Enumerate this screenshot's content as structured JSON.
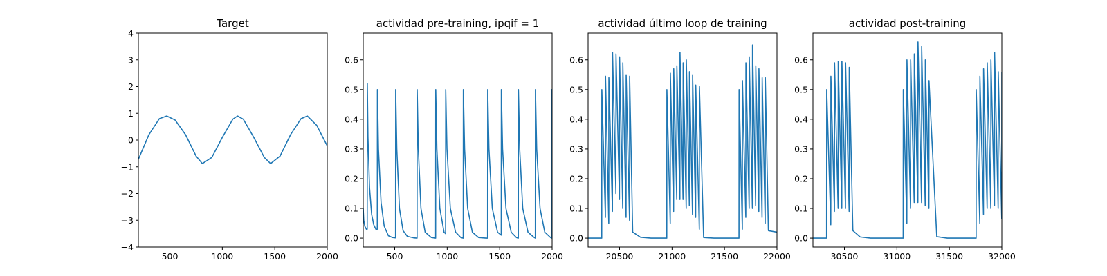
{
  "chart_data": [
    {
      "type": "line",
      "title": "Target",
      "xlabel": "",
      "ylabel": "",
      "xlim": [
        200,
        2000
      ],
      "ylim": [
        -4,
        4
      ],
      "xticks": [
        500,
        1000,
        1500,
        2000
      ],
      "yticks": [
        -4,
        -3,
        -2,
        -1,
        0,
        1,
        2,
        3,
        4
      ],
      "series": [
        {
          "color": "#1f77b4",
          "x": [
            200,
            300,
            400,
            470,
            550,
            650,
            750,
            810,
            900,
            1000,
            1100,
            1145,
            1200,
            1300,
            1400,
            1460,
            1550,
            1650,
            1750,
            1810,
            1900,
            2000
          ],
          "y": [
            -0.72,
            0.2,
            0.8,
            0.9,
            0.75,
            0.2,
            -0.6,
            -0.88,
            -0.65,
            0.1,
            0.78,
            0.9,
            0.78,
            0.1,
            -0.65,
            -0.88,
            -0.6,
            0.2,
            0.8,
            0.9,
            0.55,
            -0.22
          ]
        }
      ]
    },
    {
      "type": "line",
      "title": "actividad pre-training, ipqif = 1",
      "xlabel": "",
      "ylabel": "",
      "xlim": [
        200,
        2000
      ],
      "ylim": [
        -0.03,
        0.69
      ],
      "xticks": [
        500,
        1000,
        1500,
        2000
      ],
      "yticks": [
        0.0,
        0.1,
        0.2,
        0.3,
        0.4,
        0.5,
        0.6
      ],
      "series": [
        {
          "color": "#1f77b4",
          "x": [
            200,
            205,
            215,
            230,
            238,
            239,
            245,
            260,
            280,
            300,
            320,
            334,
            335,
            345,
            370,
            400,
            440,
            480,
            508,
            509,
            520,
            545,
            580,
            620,
            680,
            713,
            714,
            725,
            750,
            790,
            850,
            890,
            891,
            902,
            930,
            970,
            985,
            986,
            998,
            1030,
            1080,
            1130,
            1153,
            1154,
            1166,
            1195,
            1240,
            1300,
            1370,
            1385,
            1386,
            1398,
            1430,
            1480,
            1515,
            1516,
            1528,
            1560,
            1610,
            1660,
            1678,
            1679,
            1691,
            1720,
            1770,
            1830,
            1840,
            1841,
            1853,
            1885,
            1930,
            1985,
            1995,
            1996,
            2000
          ],
          "y": [
            0.1,
            0.06,
            0.04,
            0.03,
            0.03,
            0.52,
            0.34,
            0.17,
            0.08,
            0.045,
            0.03,
            0.03,
            0.5,
            0.3,
            0.12,
            0.04,
            0.008,
            0.002,
            0.001,
            0.5,
            0.3,
            0.1,
            0.025,
            0.006,
            0.001,
            0.0,
            0.5,
            0.3,
            0.1,
            0.02,
            0.002,
            0.0,
            0.5,
            0.3,
            0.1,
            0.02,
            0.015,
            0.5,
            0.3,
            0.1,
            0.02,
            0.002,
            0.0,
            0.5,
            0.3,
            0.1,
            0.02,
            0.002,
            0.0,
            0.0,
            0.5,
            0.3,
            0.1,
            0.02,
            0.01,
            0.5,
            0.3,
            0.1,
            0.02,
            0.002,
            0.0,
            0.5,
            0.3,
            0.1,
            0.02,
            0.002,
            0.0,
            0.5,
            0.3,
            0.1,
            0.02,
            0.002,
            0.0,
            0.5,
            0.15
          ]
        }
      ]
    },
    {
      "type": "line",
      "title": "actividad último loop de training",
      "xlabel": "",
      "ylabel": "",
      "xlim": [
        20200,
        22000
      ],
      "ylim": [
        -0.03,
        0.69
      ],
      "xticks": [
        20500,
        21000,
        21500,
        22000
      ],
      "yticks": [
        0.0,
        0.1,
        0.2,
        0.3,
        0.4,
        0.5,
        0.6
      ],
      "series": [
        {
          "color": "#1f77b4",
          "x": [
            20200,
            20330,
            20331,
            20365,
            20366,
            20397,
            20398,
            20432,
            20433,
            20465,
            20466,
            20499,
            20500,
            20530,
            20531,
            20562,
            20563,
            20595,
            20596,
            20625,
            20626,
            20700,
            20800,
            20950,
            20951,
            20983,
            20984,
            21015,
            21016,
            21045,
            21046,
            21075,
            21076,
            21105,
            21106,
            21135,
            21136,
            21165,
            21166,
            21195,
            21196,
            21225,
            21226,
            21260,
            21261,
            21300,
            21301,
            21400,
            21500,
            21638,
            21639,
            21670,
            21671,
            21703,
            21704,
            21735,
            21736,
            21766,
            21767,
            21797,
            21798,
            21827,
            21828,
            21858,
            21859,
            21888,
            21889,
            21918,
            21919,
            22000
          ],
          "y": [
            0.0,
            0.0,
            0.5,
            0.07,
            0.545,
            0.05,
            0.54,
            0.09,
            0.625,
            0.15,
            0.62,
            0.13,
            0.61,
            0.1,
            0.59,
            0.07,
            0.55,
            0.06,
            0.545,
            0.02,
            0.02,
            0.003,
            0.0,
            0.0,
            0.5,
            0.05,
            0.555,
            0.09,
            0.57,
            0.13,
            0.58,
            0.13,
            0.625,
            0.13,
            0.59,
            0.1,
            0.6,
            0.11,
            0.56,
            0.08,
            0.55,
            0.07,
            0.515,
            0.03,
            0.51,
            0.015,
            0.002,
            0.0,
            0.0,
            0.0,
            0.5,
            0.03,
            0.53,
            0.07,
            0.59,
            0.1,
            0.61,
            0.1,
            0.65,
            0.11,
            0.58,
            0.09,
            0.57,
            0.07,
            0.54,
            0.05,
            0.54,
            0.03,
            0.025,
            0.02
          ]
        }
      ]
    },
    {
      "type": "line",
      "title": "actividad post-training",
      "xlabel": "",
      "ylabel": "",
      "xlim": [
        30200,
        32000
      ],
      "ylim": [
        -0.03,
        0.69
      ],
      "xticks": [
        30500,
        31000,
        31500,
        32000
      ],
      "yticks": [
        0.0,
        0.1,
        0.2,
        0.3,
        0.4,
        0.5,
        0.6
      ],
      "series": [
        {
          "color": "#1f77b4",
          "x": [
            30200,
            30330,
            30331,
            30370,
            30371,
            30405,
            30406,
            30440,
            30441,
            30475,
            30476,
            30510,
            30511,
            30545,
            30546,
            30580,
            30581,
            30650,
            30750,
            31060,
            31061,
            31095,
            31096,
            31130,
            31131,
            31165,
            31166,
            31200,
            31201,
            31235,
            31236,
            31270,
            31271,
            31305,
            31306,
            31380,
            31480,
            31755,
            31756,
            31790,
            31791,
            31825,
            31826,
            31860,
            31861,
            31895,
            31896,
            31930,
            31931,
            31965,
            31966,
            31999,
            32000
          ],
          "y": [
            0.0,
            0.0,
            0.5,
            0.045,
            0.545,
            0.09,
            0.59,
            0.1,
            0.595,
            0.1,
            0.595,
            0.1,
            0.59,
            0.09,
            0.575,
            0.03,
            0.025,
            0.004,
            0.0,
            0.0,
            0.5,
            0.05,
            0.6,
            0.1,
            0.6,
            0.12,
            0.62,
            0.12,
            0.66,
            0.12,
            0.645,
            0.11,
            0.6,
            0.1,
            0.53,
            0.005,
            0.0,
            0.0,
            0.5,
            0.05,
            0.545,
            0.08,
            0.57,
            0.1,
            0.59,
            0.1,
            0.6,
            0.11,
            0.625,
            0.1,
            0.56,
            0.065,
            0.56
          ]
        }
      ]
    }
  ]
}
